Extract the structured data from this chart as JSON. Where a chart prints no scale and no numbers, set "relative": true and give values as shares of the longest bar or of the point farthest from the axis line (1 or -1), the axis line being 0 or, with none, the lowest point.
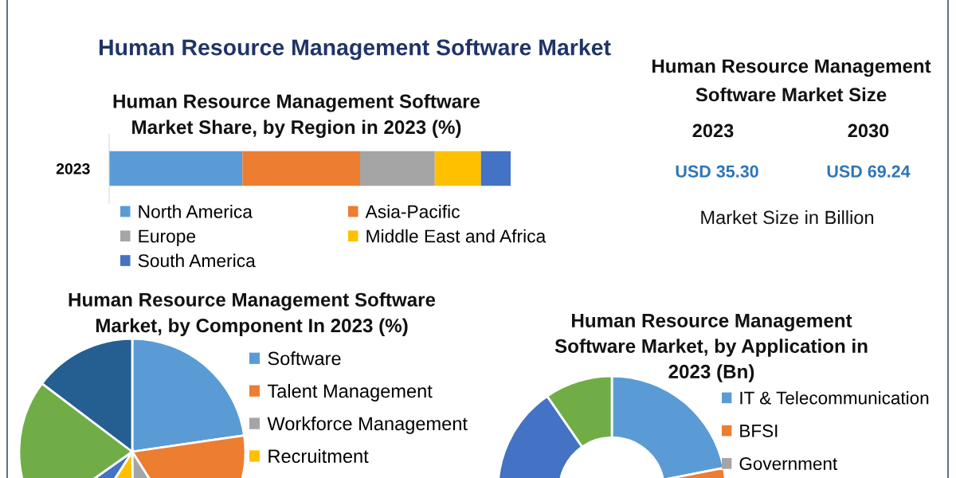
{
  "chart_data": [
    {
      "type": "other",
      "title": "Human Resource Management Software Market"
    },
    {
      "type": "bar",
      "orientation": "horizontal",
      "stacked": true,
      "relative": true,
      "title": "Human Resource Management Software\nMarket Share, by Region in 2023 (%)",
      "categories": [
        "2023"
      ],
      "series": [
        {
          "name": "North America",
          "color": "#5b9bd5",
          "values": [
            0.332
          ]
        },
        {
          "name": "Asia-Pacific",
          "color": "#ed7d31",
          "values": [
            0.293
          ]
        },
        {
          "name": "Europe",
          "color": "#a5a5a5",
          "values": [
            0.186
          ]
        },
        {
          "name": "Middle East and Africa",
          "color": "#ffc000",
          "values": [
            0.115
          ]
        },
        {
          "name": "South America",
          "color": "#4472c4",
          "values": [
            0.074
          ]
        }
      ],
      "legend": "bottom"
    },
    {
      "type": "other",
      "title": "Human Resource Management\nSoftware Market Size",
      "annotations": [
        "2023",
        "2030",
        "USD 35.30",
        "USD 69.24",
        "Market Size in Billion"
      ]
    },
    {
      "type": "pie",
      "title": "Human Resource Management Software\nMarket, by Component In 2023 (%)",
      "categories": [
        "Software",
        "Talent Management",
        "Workforce Management",
        "Recruitment",
        null,
        null,
        null
      ],
      "values": [
        22.7,
        18.3,
        8.9,
        9.2,
        6.1,
        20.1,
        14.7
      ],
      "colors": [
        "#5b9bd5",
        "#ed7d31",
        "#a5a5a5",
        "#ffc000",
        "#4472c4",
        "#70ad47",
        "#255e91"
      ],
      "legend": "right"
    },
    {
      "type": "donut",
      "title": "Human Resource Management\nSoftware Market, by Application in\n2023 (Bn)",
      "categories": [
        "IT & Telecommunication",
        "BFSI",
        "Government",
        null,
        null
      ],
      "values": [
        21.9,
        34,
        null,
        34.5,
        9.6
      ],
      "colors": [
        "#5b9bd5",
        "#ed7d31",
        "#a5a5a5",
        "#4472c4",
        "#70ad47"
      ],
      "legend": "right"
    }
  ]
}
